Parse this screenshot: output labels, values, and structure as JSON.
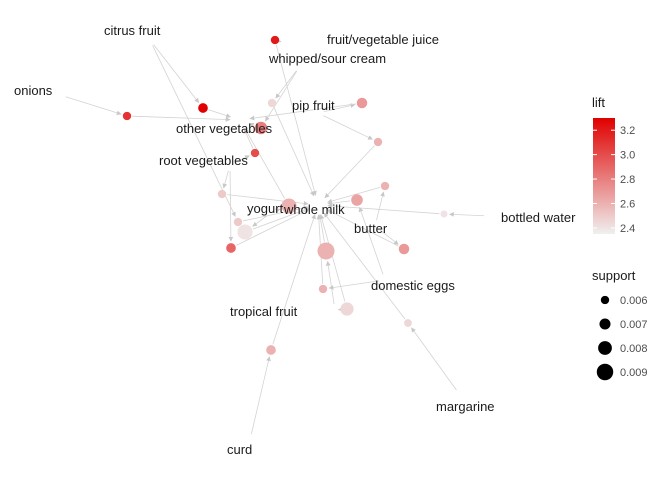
{
  "graph": {
    "item_nodes": [
      {
        "id": "citrus_fruit",
        "label": "citrus fruit"
      },
      {
        "id": "fruit_vegetable_juice",
        "label": "fruit/vegetable juice"
      },
      {
        "id": "whipped_sour_cream",
        "label": "whipped/sour cream"
      },
      {
        "id": "onions",
        "label": "onions"
      },
      {
        "id": "pip_fruit",
        "label": "pip fruit"
      },
      {
        "id": "other_vegetables",
        "label": "other vegetables"
      },
      {
        "id": "root_vegetables",
        "label": "root vegetables"
      },
      {
        "id": "yogurt",
        "label": "yogurt"
      },
      {
        "id": "whole_milk",
        "label": "whole milk"
      },
      {
        "id": "bottled_water",
        "label": "bottled water"
      },
      {
        "id": "butter",
        "label": "butter"
      },
      {
        "id": "domestic_eggs",
        "label": "domestic eggs"
      },
      {
        "id": "tropical_fruit",
        "label": "tropical fruit"
      },
      {
        "id": "margarine",
        "label": "margarine"
      },
      {
        "id": "curd",
        "label": "curd"
      }
    ],
    "rule_nodes": [
      {
        "id": "r1",
        "lift": 3.3,
        "support": 0.0065
      },
      {
        "id": "r2",
        "lift": 3.1,
        "support": 0.006
      },
      {
        "id": "r3",
        "lift": 3.0,
        "support": 0.006
      },
      {
        "id": "r4",
        "lift": 3.2,
        "support": 0.006
      },
      {
        "id": "r5",
        "lift": 2.45,
        "support": 0.006
      },
      {
        "id": "r6",
        "lift": 2.7,
        "support": 0.0068
      },
      {
        "id": "r7",
        "lift": 2.8,
        "support": 0.0075
      },
      {
        "id": "r8",
        "lift": 2.6,
        "support": 0.006
      },
      {
        "id": "r9",
        "lift": 2.5,
        "support": 0.006
      },
      {
        "id": "r10",
        "lift": 2.4,
        "support": 0.0085
      },
      {
        "id": "r11",
        "lift": 2.6,
        "support": 0.006
      },
      {
        "id": "r12",
        "lift": 2.6,
        "support": 0.0085
      },
      {
        "id": "r13",
        "lift": 2.9,
        "support": 0.0065
      },
      {
        "id": "r14",
        "lift": 2.6,
        "support": 0.0092
      },
      {
        "id": "r15",
        "lift": 2.5,
        "support": 0.006
      },
      {
        "id": "r16",
        "lift": 2.4,
        "support": 0.0055
      },
      {
        "id": "r17",
        "lift": 2.6,
        "support": 0.0065
      },
      {
        "id": "r18",
        "lift": 2.7,
        "support": 0.0068
      },
      {
        "id": "r19",
        "lift": 2.45,
        "support": 0.0078
      },
      {
        "id": "r20",
        "lift": 2.6,
        "support": 0.006
      },
      {
        "id": "r21",
        "lift": 2.65,
        "support": 0.0072
      },
      {
        "id": "r22",
        "lift": 2.45,
        "support": 0.0058
      }
    ],
    "edges": [
      [
        "citrus_fruit",
        "r1"
      ],
      [
        "r1",
        "other_vegetables"
      ],
      [
        "onions",
        "r2"
      ],
      [
        "r2",
        "other_vegetables"
      ],
      [
        "fruit_vegetable_juice",
        "r4"
      ],
      [
        "r4",
        "whole_milk"
      ],
      [
        "whipped_sour_cream",
        "r5"
      ],
      [
        "r5",
        "whole_milk"
      ],
      [
        "pip_fruit",
        "r6"
      ],
      [
        "r6",
        "other_vegetables"
      ],
      [
        "root_vegetables",
        "r3"
      ],
      [
        "r3",
        "other_vegetables"
      ],
      [
        "whipped_sour_cream",
        "r7"
      ],
      [
        "r7",
        "other_vegetables"
      ],
      [
        "pip_fruit",
        "r8"
      ],
      [
        "r8",
        "whole_milk"
      ],
      [
        "root_vegetables",
        "r9"
      ],
      [
        "r9",
        "whole_milk"
      ],
      [
        "yogurt",
        "r10"
      ],
      [
        "r10",
        "whole_milk"
      ],
      [
        "butter",
        "r11"
      ],
      [
        "r11",
        "whole_milk"
      ],
      [
        "yogurt",
        "r12"
      ],
      [
        "r12",
        "other_vegetables"
      ],
      [
        "root_vegetables",
        "r13"
      ],
      [
        "r13",
        "whole_milk"
      ],
      [
        "tropical_fruit",
        "r14"
      ],
      [
        "r14",
        "whole_milk"
      ],
      [
        "bottled_water",
        "r16"
      ],
      [
        "r16",
        "whole_milk"
      ],
      [
        "domestic_eggs",
        "r20"
      ],
      [
        "r20",
        "whole_milk"
      ],
      [
        "margarine",
        "r22"
      ],
      [
        "r22",
        "whole_milk"
      ],
      [
        "curd",
        "r17"
      ],
      [
        "r17",
        "whole_milk"
      ],
      [
        "tropical_fruit",
        "r19"
      ],
      [
        "r19",
        "whole_milk"
      ],
      [
        "domestic_eggs",
        "r21"
      ],
      [
        "r21",
        "whole_milk"
      ],
      [
        "butter",
        "r18"
      ],
      [
        "r18",
        "whole_milk"
      ],
      [
        "citrus_fruit",
        "r15"
      ],
      [
        "r15",
        "whole_milk"
      ]
    ]
  },
  "legend_lift": {
    "title": "lift",
    "ticks": [
      "3.2",
      "3.0",
      "2.8",
      "2.6",
      "2.4"
    ],
    "tick_values": [
      3.2,
      3.0,
      2.8,
      2.6,
      2.4
    ],
    "min": 2.35,
    "max": 3.3,
    "color_low": "#f0f0f0",
    "color_high": "#e00000"
  },
  "legend_support": {
    "title": "support",
    "entries": [
      {
        "label": "0.006",
        "value": 0.006
      },
      {
        "label": "0.007",
        "value": 0.007
      },
      {
        "label": "0.008",
        "value": 0.008
      },
      {
        "label": "0.009",
        "value": 0.009
      }
    ],
    "min": 0.0055,
    "max": 0.0092
  },
  "colors": {
    "edge": "#d3d3d3",
    "text": "#1a1a1a"
  }
}
